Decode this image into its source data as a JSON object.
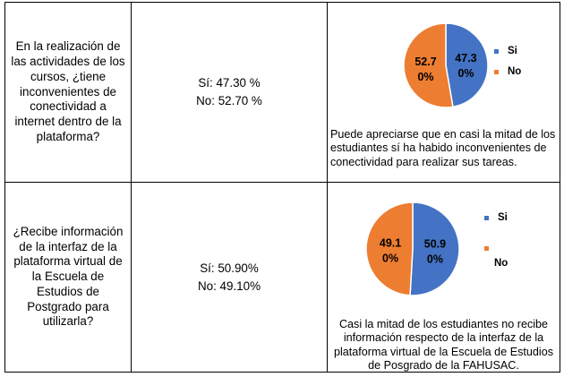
{
  "colors": {
    "si": "#4472C4",
    "no": "#ED7D31",
    "border": "#000000"
  },
  "rows": [
    {
      "question": "En la realización de las actividades de los cursos, ¿tiene inconvenientes de conectividad a internet dentro de la plataforma?",
      "answer_si": "Sí: 47.30 %",
      "answer_no": "No: 52.70 %",
      "comment": "Puede apreciarse que en casi la mitad de los estudiantes sí ha habido inconvenientes de conectividad para realizar sus tareas.",
      "chart_data": {
        "type": "pie",
        "slices": [
          {
            "label": "Si",
            "value": 47.3,
            "text": "47.3 0%",
            "line1": "47.3",
            "line2": "0%"
          },
          {
            "label": "No",
            "value": 52.7,
            "text": "52.7 0%",
            "line1": "52.7",
            "line2": "0%"
          }
        ],
        "legend": [
          "Si",
          "No"
        ],
        "legend_position": "right"
      }
    },
    {
      "question": "¿Recibe información de la interfaz de la plataforma virtual de la Escuela de Estudios de Postgrado para utilizarla?",
      "answer_si": "Sí: 50.90%",
      "answer_no": "No: 49.10%",
      "comment": "Casi la mitad de los estudiantes no recibe información respecto de la interfaz de la plataforma virtual de la Escuela de Estudios de Posgrado de la FAHUSAC.",
      "chart_data": {
        "type": "pie",
        "slices": [
          {
            "label": "Si",
            "value": 50.9,
            "text": "50.9 0%",
            "line1": "50.9",
            "line2": "0%"
          },
          {
            "label": "No",
            "value": 49.1,
            "text": "49.1 0%",
            "line1": "49.1",
            "line2": "0%"
          }
        ],
        "legend": [
          "Si",
          "No"
        ],
        "legend_position": "right"
      }
    }
  ]
}
